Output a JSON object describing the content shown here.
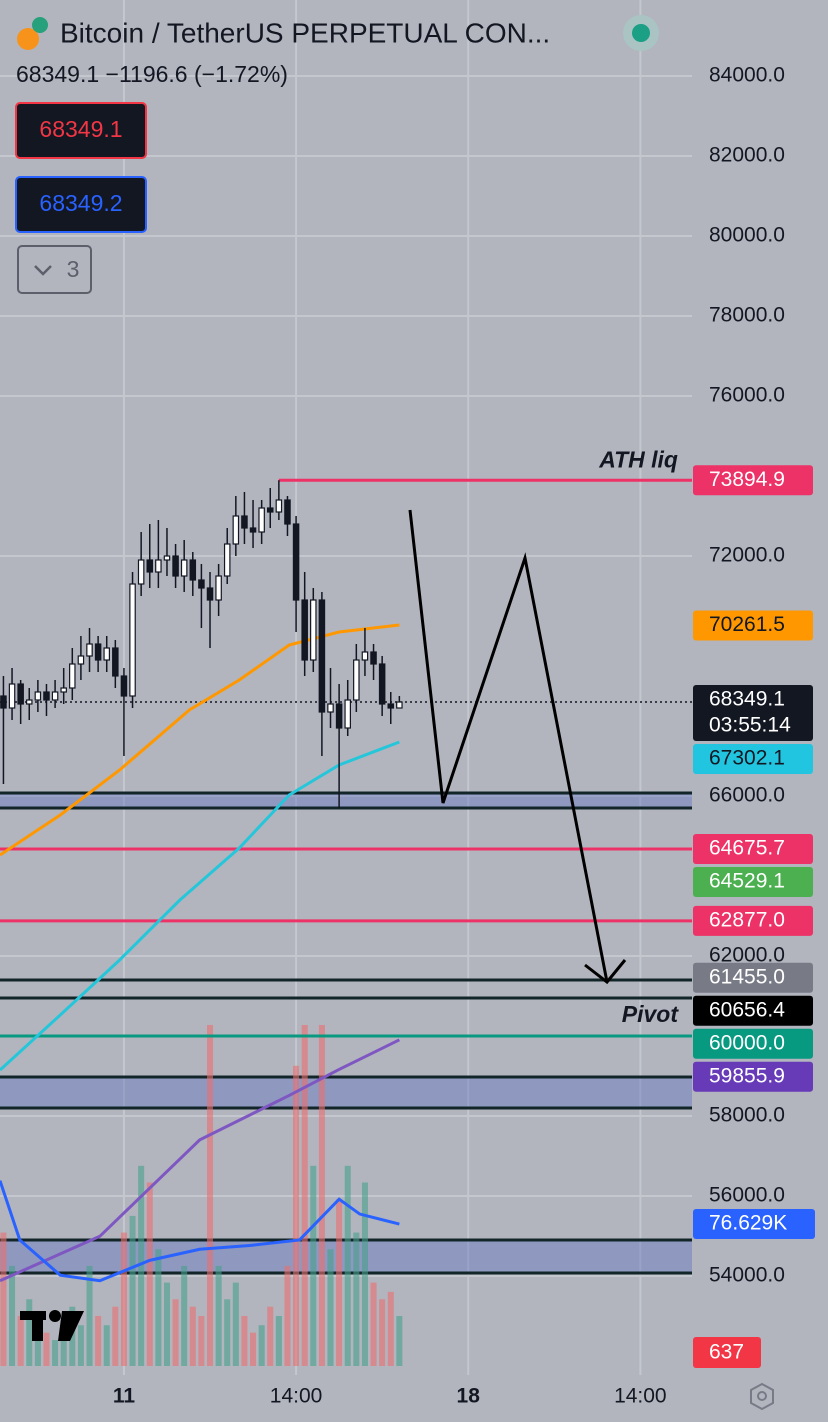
{
  "header": {
    "title": "Bitcoin / TetherUS PERPETUAL CON...",
    "quote": "68349.1 −1196.6 (−1.72%)",
    "sell": "68349.1",
    "buy": "68349.2",
    "collapsed_count": "3"
  },
  "chart_data": {
    "type": "candlestick",
    "ylim": [
      51400,
      85900
    ],
    "yticks": [
      {
        "value": 84000,
        "label": "84000.0"
      },
      {
        "value": 82000,
        "label": "82000.0"
      },
      {
        "value": 80000,
        "label": "80000.0"
      },
      {
        "value": 78000,
        "label": "78000.0"
      },
      {
        "value": 76000,
        "label": "76000.0"
      },
      {
        "value": 72000,
        "label": "72000.0"
      },
      {
        "value": 66000,
        "label": "66000.0"
      },
      {
        "value": 62000,
        "label": "62000.0"
      },
      {
        "value": 58000,
        "label": "58000.0"
      },
      {
        "value": 56000,
        "label": "56000.0"
      },
      {
        "value": 54000,
        "label": "54000.0"
      }
    ],
    "xlim": [
      -0.4,
      80
    ],
    "xticks": [
      {
        "value": 14,
        "label": "11"
      },
      {
        "value": 34,
        "label": "14:00"
      },
      {
        "value": 54,
        "label": "18"
      },
      {
        "value": 74,
        "label": "14:00"
      }
    ],
    "grid": true,
    "up_color": "#ffffff",
    "down_color": "#131722",
    "open": [
      68500,
      68200,
      68800,
      68300,
      68400,
      68600,
      68400,
      68600,
      68700,
      69300,
      69500,
      69800,
      69400,
      69700,
      69000,
      68500,
      71300,
      71900,
      71600,
      71900,
      72000,
      71500,
      71900,
      71400,
      71200,
      70900,
      71500,
      72300,
      73000,
      72700,
      72600,
      73200,
      73100,
      73400,
      72800,
      70900,
      69400,
      70900,
      68100,
      68300,
      67700,
      68400,
      69400,
      69600,
      69300,
      68300,
      68200
    ],
    "high": [
      69000,
      69200,
      68900,
      68700,
      68900,
      68800,
      68900,
      69200,
      69700,
      70000,
      70200,
      70000,
      70000,
      69900,
      69200,
      71600,
      72600,
      72800,
      72900,
      72700,
      72300,
      72400,
      72100,
      71800,
      71600,
      71800,
      72700,
      73500,
      73600,
      73400,
      73400,
      73700,
      73894.9,
      73500,
      73000,
      71600,
      71200,
      71100,
      69200,
      68800,
      68900,
      69800,
      70200,
      69800,
      69500,
      68600,
      68500
    ],
    "low": [
      66300,
      67900,
      67800,
      67900,
      68100,
      68000,
      68200,
      68300,
      68400,
      68900,
      69100,
      69100,
      69100,
      68700,
      67000,
      68200,
      71000,
      71200,
      71200,
      71500,
      71200,
      71100,
      71000,
      70200,
      69700,
      70500,
      71300,
      72000,
      72300,
      72200,
      72300,
      72700,
      72900,
      72500,
      70100,
      69000,
      69100,
      67000,
      67700,
      65700,
      67500,
      68100,
      69000,
      68900,
      68000,
      67800,
      68200
    ],
    "close": [
      68200,
      68800,
      68300,
      68400,
      68600,
      68400,
      68600,
      68700,
      69300,
      69500,
      69800,
      69400,
      69700,
      69000,
      68500,
      71300,
      71900,
      71600,
      71900,
      72000,
      71500,
      71900,
      71400,
      71200,
      70900,
      71500,
      72300,
      73000,
      72700,
      72600,
      73200,
      73100,
      73400,
      72800,
      70900,
      69400,
      70900,
      68100,
      68300,
      67700,
      68400,
      69400,
      69600,
      69300,
      68300,
      68200,
      68349.1
    ],
    "volume": [
      72,
      54,
      27,
      36,
      22,
      18,
      14,
      25,
      32,
      22,
      54,
      27,
      22,
      32,
      72,
      81,
      108,
      99,
      63,
      45,
      36,
      54,
      32,
      27,
      184,
      54,
      36,
      45,
      27,
      18,
      22,
      32,
      27,
      54,
      162,
      184,
      108,
      184,
      63,
      90,
      108,
      72,
      99,
      45,
      36,
      40,
      27
    ],
    "vlim": [
      0,
      184
    ],
    "volume_up_color": "rgba(70,160,140,0.6)",
    "volume_down_color": "rgba(235,110,110,0.6)",
    "lines": [
      {
        "color": "#ff9800",
        "panel": "price",
        "x": [
          -0.4,
          6.6,
          13.5,
          21.6,
          27.4,
          33.2,
          39,
          46
        ],
        "values": [
          64525,
          65525,
          66650,
          68150,
          68900,
          69775,
          70100,
          70275
        ]
      },
      {
        "color": "#26c6da",
        "panel": "price",
        "x": [
          -0.4,
          6.6,
          13.5,
          20.5,
          27.4,
          33.2,
          39,
          46
        ],
        "values": [
          59150,
          60525,
          61900,
          63400,
          64700,
          66025,
          66775,
          67350
        ]
      },
      {
        "color": "#7e57c2",
        "panel": "volume",
        "x": [
          -0.4,
          11.2,
          22.8,
          33.2,
          39,
          46
        ],
        "values": [
          46,
          70,
          122,
          146,
          160,
          176
        ]
      },
      {
        "color": "#2962ff",
        "panel": "volume",
        "x": [
          -0.4,
          1.9,
          6.6,
          11.2,
          17,
          22.8,
          28.6,
          34.4,
          39,
          41.4,
          46
        ],
        "values": [
          100,
          68,
          49,
          46,
          57,
          63,
          65,
          68,
          90,
          82,
          76.6
        ]
      }
    ],
    "zones": [
      {
        "from": 65700,
        "to": 66075,
        "fill": "rgba(90,110,190,0.4)"
      },
      {
        "from": 60950,
        "to": 61400,
        "fill": null
      },
      {
        "from": 58200,
        "to": 58975,
        "fill": "rgba(90,110,190,0.4)"
      },
      {
        "from": 54075,
        "to": 54900,
        "fill": "rgba(90,110,190,0.4)"
      }
    ],
    "levels": [
      {
        "value": 73894.9,
        "color": "#ec3266",
        "text_color": "#ffffff",
        "line": "solid",
        "x_start": 32,
        "note": "ATH liq",
        "note_position": "above"
      },
      {
        "value": 70261.5,
        "color": "#ff9800",
        "text_color": "#131722"
      },
      {
        "value": 68349.1,
        "color": "#131722",
        "text_color": "#ffffff",
        "line": "dotted",
        "countdown": "03:55:14"
      },
      {
        "value": 67302.1,
        "color": "#22c5e0",
        "text_color": "#131722"
      },
      {
        "value": 64675.7,
        "color": "#ec3266",
        "text_color": "#ffffff",
        "line": "solid"
      },
      {
        "value": 64529.1,
        "color": "#4caf50",
        "text_color": "#ffffff"
      },
      {
        "value": 62877,
        "label": "62877.0",
        "color": "#ec3266",
        "text_color": "#ffffff",
        "line": "solid"
      },
      {
        "value": 61455,
        "label": "61455.0",
        "color": "#787b86",
        "text_color": "#ffffff"
      },
      {
        "value": 60656.4,
        "color": "#000000",
        "text_color": "#ffffff",
        "note": "Pivot",
        "note_position": "below"
      },
      {
        "value": 60000,
        "label": "60000.0",
        "color": "#089981",
        "text_color": "#ffffff",
        "line": "solid"
      },
      {
        "value": 59855.9,
        "color": "#673ab7",
        "text_color": "#ffffff"
      }
    ],
    "volume_labels": [
      {
        "value": 76.629,
        "label": "76.629K",
        "color": "#2962ff"
      }
    ],
    "last_bar_label": {
      "label": "637",
      "color": "#f23645"
    }
  }
}
